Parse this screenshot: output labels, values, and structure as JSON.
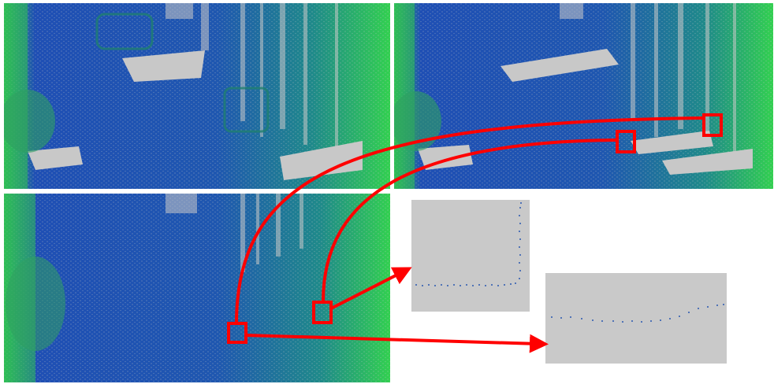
{
  "figure": {
    "panels": [
      {
        "id": "scan-a",
        "description_key": "point-cloud-top-left"
      },
      {
        "id": "scan-b",
        "description_key": "point-cloud-top-right"
      },
      {
        "id": "scan-c",
        "description_key": "point-cloud-bottom-left"
      }
    ],
    "insets": [
      {
        "id": "zoom-corner"
      },
      {
        "id": "zoom-edge"
      }
    ]
  },
  "colors": {
    "ground_blue": "#1f4fb4",
    "wall_teal": "#1f7f8f",
    "vegetation_green": "#2fd650",
    "empty_gray": "#c8c8c8",
    "highlight_red": "#ff0000"
  }
}
